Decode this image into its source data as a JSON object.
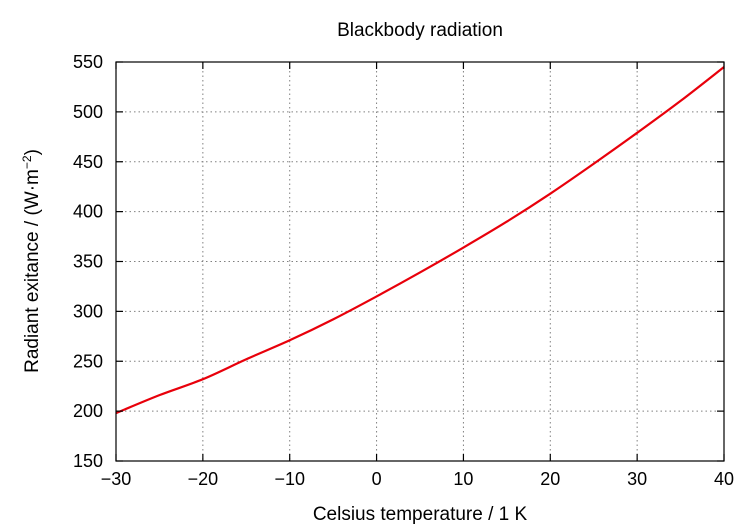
{
  "chart_data": {
    "type": "line",
    "title": "Blackbody radiation",
    "xlabel": "Celsius temperature / 1 K",
    "ylabel": {
      "prefix": "Radiant exitance / (W·m",
      "superscript": "−2",
      "suffix": ")"
    },
    "xlim": [
      -30,
      40
    ],
    "ylim": [
      150,
      550
    ],
    "xticks": [
      -30,
      -20,
      -10,
      0,
      10,
      20,
      30,
      40
    ],
    "xtick_labels": [
      "−30",
      "−20",
      "−10",
      "0",
      "10",
      "20",
      "30",
      "40"
    ],
    "yticks": [
      150,
      200,
      250,
      300,
      350,
      400,
      450,
      500,
      550
    ],
    "ytick_labels": [
      "150",
      "200",
      "250",
      "300",
      "350",
      "400",
      "450",
      "500",
      "550"
    ],
    "grid": true,
    "series": [
      {
        "color": "#e8000b",
        "x": [
          -30,
          -25,
          -20,
          -15,
          -10,
          -5,
          0,
          5,
          10,
          15,
          20,
          25,
          30,
          35,
          40
        ],
        "y": [
          198,
          216,
          232,
          252,
          271,
          292,
          315,
          339,
          364,
          390,
          418,
          448,
          479,
          511,
          545
        ]
      }
    ]
  }
}
